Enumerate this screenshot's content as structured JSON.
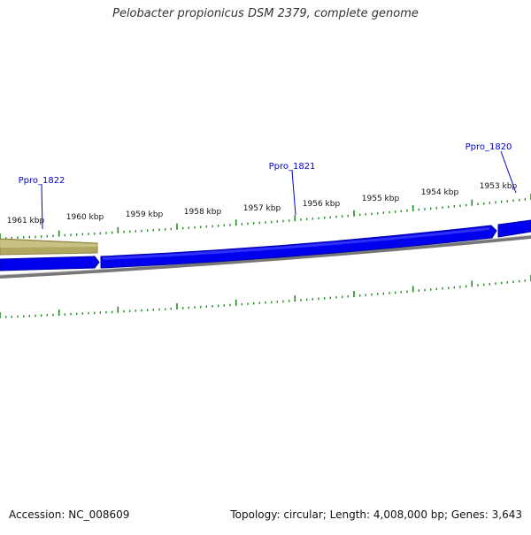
{
  "title": "Pelobacter propionicus DSM 2379, complete genome",
  "footer": {
    "accession": "Accession: NC_008609",
    "summary": "Topology: circular; Length: 4,008,000 bp; Genes: 3,643"
  },
  "colors": {
    "forward_gene": "#0000ee",
    "reverse_gene": "#b0a860",
    "backbone": "#808080",
    "ticks": "#228b22",
    "gene_label": "#0000cc",
    "tick_label": "#111111"
  },
  "tick_labels": [
    "1961 kbp",
    "1960 kbp",
    "1959 kbp",
    "1958 kbp",
    "1957 kbp",
    "1956 kbp",
    "1955 kbp",
    "1954 kbp",
    "1953 kbp"
  ],
  "gene_labels": [
    "Ppro_1822",
    "Ppro_1821",
    "Ppro_1820"
  ]
}
